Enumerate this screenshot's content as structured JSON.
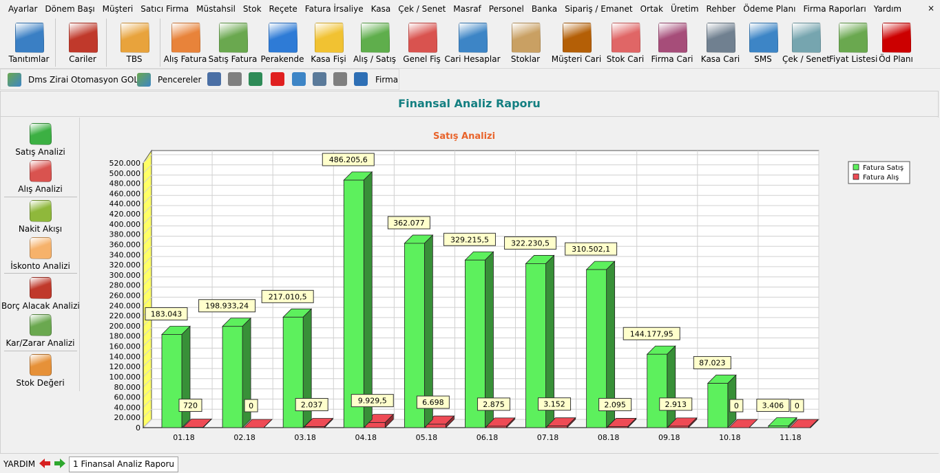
{
  "menu": [
    "Ayarlar",
    "Dönem Başı",
    "Müşteri",
    "Satıcı Firma",
    "Müstahsil",
    "Stok",
    "Reçete",
    "Fatura İrsaliye",
    "Kasa",
    "Çek / Senet",
    "Masraf",
    "Personel",
    "Banka",
    "Sipariş / Emanet",
    "Ortak",
    "Üretim",
    "Rehber",
    "Ödeme Planı",
    "Firma Raporları",
    "Yardım"
  ],
  "menu_close": "×",
  "toolbar": [
    {
      "label": "Tanıtımlar",
      "icon": "id-card-icon",
      "color": "#3a7fc4"
    },
    {
      "label": "Cariler",
      "icon": "binders-icon",
      "color": "#c0392b"
    },
    {
      "label": "TBS",
      "icon": "tbs-logo-icon",
      "color": "#e8a33c"
    },
    {
      "label": "Alış Fatura",
      "icon": "purchase-invoice-icon",
      "color": "#e8833a"
    },
    {
      "label": "Satış Fatura",
      "icon": "sales-invoice-icon",
      "color": "#6aa84f"
    },
    {
      "label": "Perakende",
      "icon": "shopping-cart-icon",
      "color": "#2e7bd6"
    },
    {
      "label": "Kasa Fişi",
      "icon": "cash-slip-icon",
      "color": "#f1c232"
    },
    {
      "label": "Alış / Satış",
      "icon": "checklist-icon",
      "color": "#5fae4c"
    },
    {
      "label": "Genel Fiş",
      "icon": "general-slip-icon",
      "color": "#d9534f"
    },
    {
      "label": "Cari Hesaplar",
      "icon": "users-icon",
      "color": "#3d85c6"
    },
    {
      "label": "Stoklar",
      "icon": "boxes-icon",
      "color": "#c9a063"
    },
    {
      "label": "Müşteri Cari",
      "icon": "customer-binders-icon",
      "color": "#b45f06"
    },
    {
      "label": "Stok Cari",
      "icon": "cube-icon",
      "color": "#e06666"
    },
    {
      "label": "Firma Cari",
      "icon": "company-binders-icon",
      "color": "#a64d79"
    },
    {
      "label": "Kasa Cari",
      "icon": "safe-icon",
      "color": "#708090"
    },
    {
      "label": "SMS",
      "icon": "phone-sms-icon",
      "color": "#3d85c6"
    },
    {
      "label": "Çek / Senet",
      "icon": "cheque-pen-icon",
      "color": "#76a5af"
    },
    {
      "label": "Fiyat Listesi",
      "icon": "price-chart-icon",
      "color": "#6aa84f"
    },
    {
      "label": "Öd Planı",
      "icon": "calendar-clock-icon",
      "color": "#cc0000"
    }
  ],
  "toolbar2": {
    "app_name": "Dms Zirai Otomasyon GOLD",
    "windows_label": "Pencereler",
    "company_label": "Firma",
    "icons": [
      "calendar-icon",
      "calculator-icon",
      "money-transfer-icon",
      "youtube-icon",
      "qr-scan-icon",
      "qr-code-icon",
      "clipboard-icon",
      "refresh-icon"
    ]
  },
  "report_title": "Finansal Analiz Raporu",
  "sidebar": [
    {
      "label": "Satış Analizi",
      "icon": "green-box-icon",
      "color": "#3cb043"
    },
    {
      "label": "Alış Analizi",
      "icon": "red-box-icon",
      "color": "#d9534f"
    },
    {
      "label": "Nakit Akışı",
      "icon": "cash-flow-icon",
      "color": "#8fb83b"
    },
    {
      "label": "İskonto Analizi",
      "icon": "discount-tag-icon",
      "color": "#f6b26b"
    },
    {
      "label": "Borç Alacak Analizi",
      "icon": "ledger-book-icon",
      "color": "#c0392b"
    },
    {
      "label": "Kar/Zarar Analizi",
      "icon": "profit-chart-icon",
      "color": "#6aa84f"
    },
    {
      "label": "Stok Değeri",
      "icon": "stock-value-chart-icon",
      "color": "#e69138"
    }
  ],
  "chart_data": {
    "type": "bar",
    "title": "Satış Analizi",
    "categories": [
      "01.18",
      "02.18",
      "03.18",
      "04.18",
      "05.18",
      "06.18",
      "07.18",
      "08.18",
      "09.18",
      "10.18",
      "11.18"
    ],
    "series": [
      {
        "name": "Fatura Satış",
        "color": "#5df05d",
        "values": [
          183043,
          198933.24,
          217010.5,
          486205.6,
          362077,
          329215.5,
          322230.5,
          310502.1,
          144177.95,
          87023,
          3406
        ],
        "labels": [
          "183.043",
          "198.933,24",
          "217.010,5",
          "486.205,6",
          "362.077",
          "329.215,5",
          "322.230,5",
          "310.502,1",
          "144.177,95",
          "87.023",
          "3.406"
        ]
      },
      {
        "name": "Fatura Alış",
        "color": "#ee4b55",
        "values": [
          720,
          0,
          2037,
          9929.5,
          6698,
          2875,
          3152,
          2095,
          2913,
          0,
          0
        ],
        "labels": [
          "720",
          "0",
          "2.037",
          "9.929,5",
          "6.698",
          "2.875",
          "3.152",
          "2.095",
          "2.913",
          "0",
          "0"
        ]
      }
    ],
    "ylim": [
      0,
      520000
    ],
    "ytick_step": 20000,
    "grid": true,
    "legend": "top-right"
  },
  "status": {
    "help_label": "YARDIM",
    "tab_label": "1 Finansal Analiz Raporu"
  }
}
